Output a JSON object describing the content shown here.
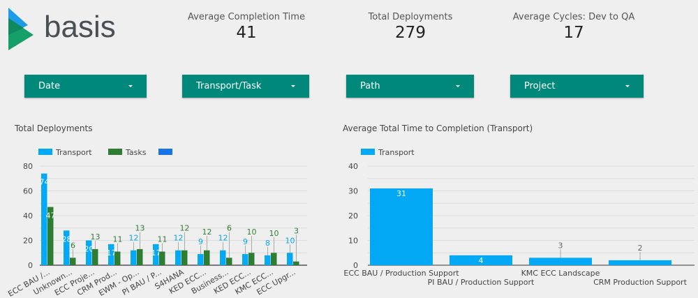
{
  "brand": {
    "name": "basis"
  },
  "kpis": [
    {
      "label": "Average Completion Time",
      "value": "41"
    },
    {
      "label": "Total Deployments",
      "value": "279"
    },
    {
      "label": "Average Cycles: Dev to QA",
      "value": "17"
    }
  ],
  "filters": [
    {
      "label": "Date"
    },
    {
      "label": "Transport/Task"
    },
    {
      "label": "Path"
    },
    {
      "label": "Project"
    }
  ],
  "colors": {
    "transport": "#03a9f4",
    "tasks": "#2e7d32",
    "extra": "#1a73e8",
    "filter": "#00897b"
  },
  "chart_data": [
    {
      "type": "bar",
      "title": "Total Deployments",
      "legend": [
        "Transport",
        "Tasks",
        ""
      ],
      "ylim": [
        0,
        80
      ],
      "yticks": [
        0,
        20,
        40,
        60,
        80
      ],
      "categories": [
        "ECC BAU /...",
        "Unknown...",
        "ECC Proje...",
        "CRM Prod...",
        "EWM - Op...",
        "PI BAU / P...",
        "S4HANA",
        "KED ECC...",
        "Business...",
        "KED ECC...",
        "KMC ECC...",
        "ECC Upgr..."
      ],
      "series": [
        {
          "name": "Transport",
          "values": [
            74,
            28,
            20,
            17,
            12,
            17,
            12,
            9,
            12,
            9,
            8,
            10
          ]
        },
        {
          "name": "Tasks",
          "values": [
            47,
            6,
            13,
            11,
            13,
            11,
            12,
            12,
            6,
            10,
            10,
            3
          ]
        }
      ]
    },
    {
      "type": "bar",
      "title": "Average Total Time to Completion (Transport)",
      "legend": [
        "Transport"
      ],
      "ylim": [
        0,
        40
      ],
      "yticks": [
        0,
        10,
        20,
        30,
        40
      ],
      "categories": [
        "ECC BAU / Production Support",
        "PI BAU / Production Support",
        "KMC ECC Landscape",
        "CRM Production Support"
      ],
      "series": [
        {
          "name": "Transport",
          "values": [
            31,
            4,
            3,
            2
          ]
        }
      ]
    }
  ]
}
